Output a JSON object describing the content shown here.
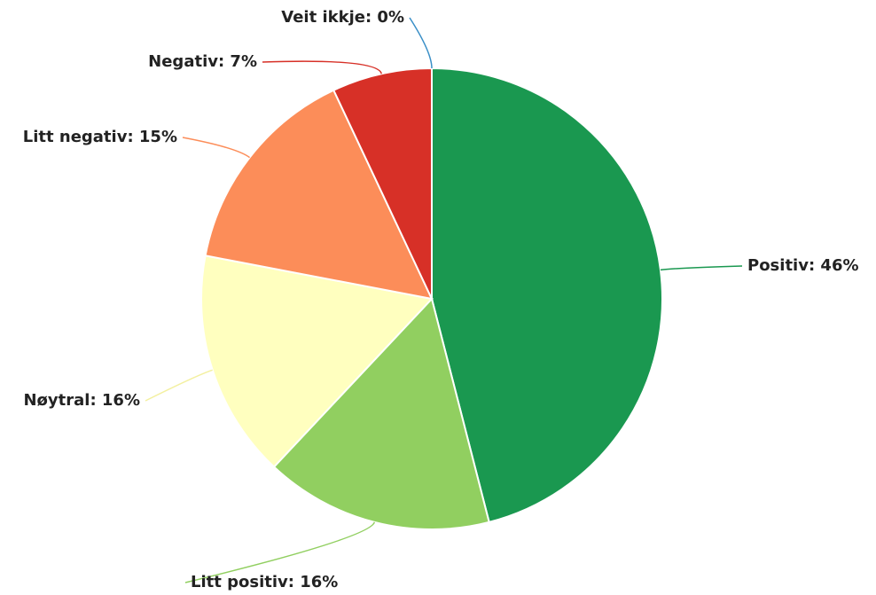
{
  "chart_data": {
    "type": "pie",
    "values": [
      46,
      16,
      16,
      15,
      7,
      0
    ],
    "value_labels": [
      "Positiv: 46%",
      "Litt positiv: 16%",
      "Nøytral: 16%",
      "Litt negativ: 15%",
      "Negativ: 7%",
      "Veit ikkje: 0%"
    ],
    "colors": [
      "#1a9850",
      "#91cf60",
      "#ffffbf",
      "#fc8d59",
      "#d73027",
      "#3a8fc7"
    ]
  }
}
